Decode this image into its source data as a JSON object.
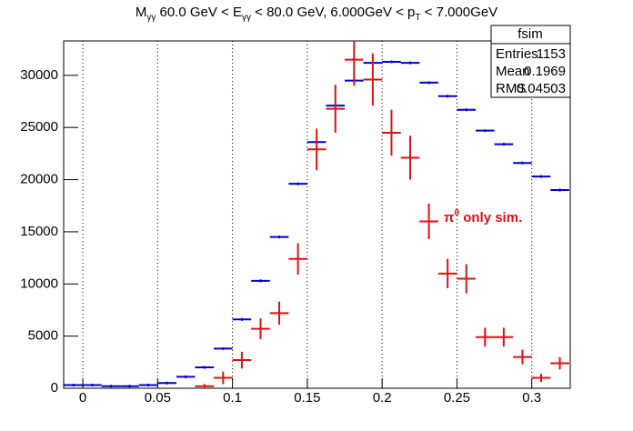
{
  "chart_data": {
    "type": "errorbar",
    "title": [
      "M",
      "γγ",
      " 60.0 GeV < E",
      "γγ",
      " < 80.0 GeV, 6.000GeV < p",
      "T",
      " < 7.000GeV"
    ],
    "bins_start": -0.0125,
    "bin_width": 0.0125,
    "xlim": [
      -0.0128,
      0.3257
    ],
    "ylim": [
      0,
      33300
    ],
    "xticks": [
      0,
      0.05,
      0.1,
      0.15,
      0.2,
      0.25,
      0.3
    ],
    "yticks": [
      0,
      5000,
      10000,
      15000,
      20000,
      25000,
      30000
    ],
    "xgrid": true,
    "series": [
      {
        "name": "fsim",
        "color": "#0000cc",
        "values": [
          300,
          300,
          200,
          200,
          300,
          500,
          1100,
          2000,
          3800,
          6600,
          10300,
          14500,
          19600,
          23600,
          27100,
          29500,
          31200,
          31300,
          31200,
          29300,
          28000,
          26700,
          24700,
          23400,
          21600,
          20300,
          19000
        ]
      },
      {
        "color": "#dd1111",
        "values": [
          null,
          null,
          null,
          null,
          null,
          null,
          null,
          200,
          1000,
          2700,
          5700,
          7200,
          12400,
          22900,
          26800,
          31500,
          29600,
          24500,
          22100,
          16000,
          11000,
          10500,
          4900,
          4900,
          3000,
          1000,
          2400
        ],
        "errors": [
          null,
          null,
          null,
          null,
          null,
          null,
          null,
          200,
          600,
          800,
          1000,
          1100,
          1500,
          2000,
          2300,
          2500,
          2500,
          2200,
          2100,
          1700,
          1400,
          1400,
          900,
          900,
          700,
          400,
          600
        ]
      }
    ],
    "annotation": [
      "π",
      "0",
      " only sim."
    ],
    "stats": {
      "title": "fsim",
      "rows": [
        [
          "Entries",
          1153
        ],
        [
          "Mean",
          0.1969
        ],
        [
          "RMS",
          0.04503
        ]
      ]
    }
  }
}
